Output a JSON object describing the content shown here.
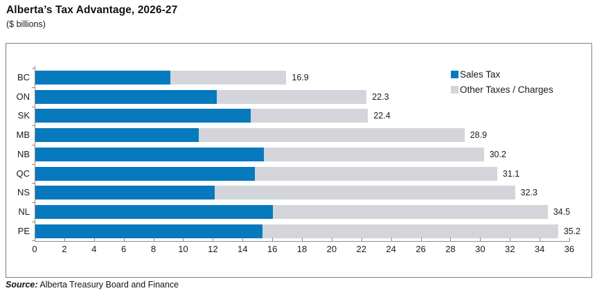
{
  "header": {
    "title": "Alberta’s Tax Advantage, 2026-27",
    "subtitle": "($ billions)"
  },
  "source": {
    "label": "Source:",
    "text": " Alberta Treasury Board and Finance"
  },
  "colors": {
    "sales_tax": "#0779bd",
    "other_taxes": "#d3d5db",
    "axis": "#8c8c8c",
    "text": "#1a1a1a"
  },
  "chart_data": {
    "type": "bar",
    "orientation": "horizontal",
    "stacked": true,
    "title": "Alberta’s Tax Advantage, 2026-27",
    "subtitle": "($ billions)",
    "categories": [
      "BC",
      "ON",
      "SK",
      "MB",
      "NB",
      "QC",
      "NS",
      "NL",
      "PE"
    ],
    "series": [
      {
        "name": "Sales Tax",
        "color": "#0779bd",
        "values": [
          9.1,
          12.2,
          14.5,
          11.0,
          15.4,
          14.8,
          12.1,
          16.0,
          15.3
        ]
      },
      {
        "name": "Other Taxes / Charges",
        "color": "#d3d5db",
        "values": [
          7.8,
          10.1,
          7.9,
          17.9,
          14.8,
          16.3,
          20.2,
          18.5,
          19.9
        ]
      }
    ],
    "totals": [
      16.9,
      22.3,
      22.4,
      28.9,
      30.2,
      31.1,
      32.3,
      34.5,
      35.2
    ],
    "total_labels": [
      "16.9",
      "22.3",
      "22.4",
      "28.9",
      "30.2",
      "31.1",
      "32.3",
      "34.5",
      "35.2"
    ],
    "xlim": [
      0,
      36
    ],
    "xtick_step": 2,
    "xticks": [
      0,
      2,
      4,
      6,
      8,
      10,
      12,
      14,
      16,
      18,
      20,
      22,
      24,
      26,
      28,
      30,
      32,
      34,
      36
    ],
    "grid": false,
    "legend_position": "top-right"
  }
}
